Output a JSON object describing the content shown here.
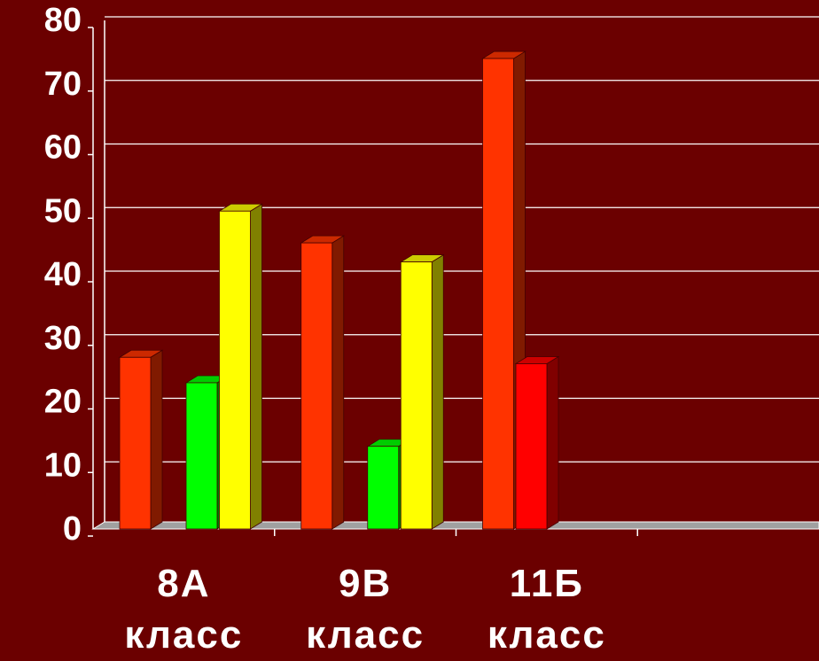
{
  "chart_data": {
    "type": "bar3d",
    "categories": [
      "8А класс",
      "9В класс",
      "11Б класс",
      null
    ],
    "series": [
      {
        "color": "#ff3300",
        "values": [
          27,
          45,
          74,
          null
        ]
      },
      {
        "color": "#ff0000",
        "values": [
          null,
          null,
          26,
          null
        ]
      },
      {
        "color": "#00ff00",
        "values": [
          23,
          13,
          null,
          null
        ]
      },
      {
        "color": "#ffff00",
        "values": [
          50,
          42,
          null,
          null
        ]
      }
    ],
    "ylim": [
      0,
      80
    ],
    "yticks": [
      0,
      10,
      20,
      30,
      40,
      50,
      60,
      70,
      80
    ],
    "grid": true
  }
}
